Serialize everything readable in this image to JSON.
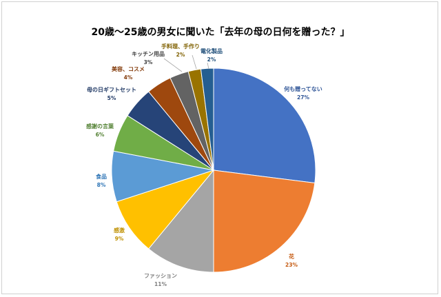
{
  "chart_data": {
    "type": "pie",
    "title": "20歳〜25歳の男女に聞いた「去年の母の日何を贈った？」",
    "slices": [
      {
        "label": "何も贈ってない",
        "pct": "27%",
        "value": 27,
        "color": "#4472C4",
        "label_color": "#2F5597"
      },
      {
        "label": "花",
        "pct": "23%",
        "value": 23,
        "color": "#ED7D31",
        "label_color": "#C55A11"
      },
      {
        "label": "ファッション",
        "pct": "11%",
        "value": 11,
        "color": "#A5A5A5",
        "label_color": "#7F7F7F"
      },
      {
        "label": "感激",
        "pct": "9%",
        "value": 9,
        "color": "#FFC000",
        "label_color": "#BF9000"
      },
      {
        "label": "食品",
        "pct": "8%",
        "value": 8,
        "color": "#5B9BD5",
        "label_color": "#2E75B6"
      },
      {
        "label": "感謝の言葉",
        "pct": "6%",
        "value": 6,
        "color": "#70AD47",
        "label_color": "#548235"
      },
      {
        "label": "母の日ギフトセット",
        "pct": "5%",
        "value": 5,
        "color": "#264478",
        "label_color": "#1F3864"
      },
      {
        "label": "美容、コスメ",
        "pct": "4%",
        "value": 4,
        "color": "#9E480E",
        "label_color": "#843C0C"
      },
      {
        "label": "キッチン用品",
        "pct": "3%",
        "value": 3,
        "color": "#636363",
        "label_color": "#404040"
      },
      {
        "label": "手料理、手作り",
        "pct": "2%",
        "value": 2,
        "color": "#997300",
        "label_color": "#7F6000"
      },
      {
        "label": "電化製品",
        "pct": "2%",
        "value": 2,
        "color": "#255E91",
        "label_color": "#1F4E79"
      }
    ]
  }
}
